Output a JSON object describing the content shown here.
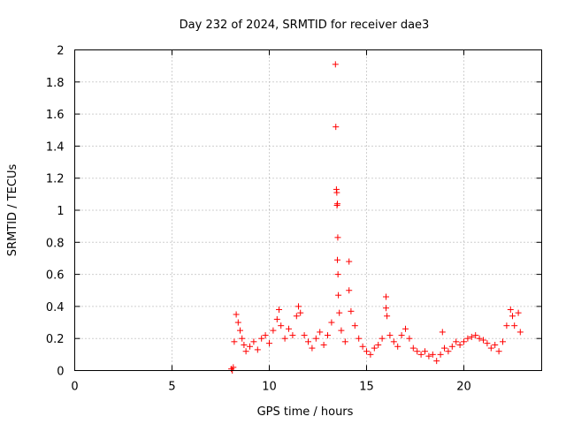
{
  "chart_data": {
    "type": "scatter",
    "title": "Day 232 of 2024, SRMTID for receiver dae3",
    "xlabel": "GPS time / hours",
    "ylabel": "SRMTID / TECUs",
    "xlim": [
      0,
      24
    ],
    "ylim": [
      0,
      2
    ],
    "xticks": [
      0,
      5,
      10,
      15,
      20
    ],
    "xtick_labels": [
      "0",
      "5",
      "10",
      "15",
      "20"
    ],
    "yticks": [
      0,
      0.2,
      0.4,
      0.6,
      0.8,
      1,
      1.2,
      1.4,
      1.6,
      1.8,
      2
    ],
    "ytick_labels": [
      "0",
      "0.2",
      "0.4",
      "0.6",
      "0.8",
      "1",
      "1.2",
      "1.4",
      "1.6",
      "1.8",
      "2"
    ],
    "grid": true,
    "marker": "+",
    "color": "#ff0000",
    "series": [
      {
        "name": "SRMTID",
        "points": [
          [
            8.05,
            0.01
          ],
          [
            8.1,
            0.0
          ],
          [
            8.15,
            0.02
          ],
          [
            8.2,
            0.18
          ],
          [
            8.3,
            0.35
          ],
          [
            8.4,
            0.3
          ],
          [
            8.5,
            0.25
          ],
          [
            8.6,
            0.2
          ],
          [
            8.7,
            0.16
          ],
          [
            8.8,
            0.12
          ],
          [
            9.0,
            0.15
          ],
          [
            9.2,
            0.18
          ],
          [
            9.4,
            0.13
          ],
          [
            9.6,
            0.2
          ],
          [
            9.8,
            0.22
          ],
          [
            10.0,
            0.17
          ],
          [
            10.2,
            0.25
          ],
          [
            10.4,
            0.32
          ],
          [
            10.5,
            0.38
          ],
          [
            10.6,
            0.28
          ],
          [
            10.8,
            0.2
          ],
          [
            11.0,
            0.26
          ],
          [
            11.2,
            0.22
          ],
          [
            11.4,
            0.34
          ],
          [
            11.5,
            0.4
          ],
          [
            11.6,
            0.36
          ],
          [
            11.8,
            0.22
          ],
          [
            12.0,
            0.18
          ],
          [
            12.2,
            0.14
          ],
          [
            12.4,
            0.2
          ],
          [
            12.6,
            0.24
          ],
          [
            12.8,
            0.16
          ],
          [
            13.0,
            0.22
          ],
          [
            13.2,
            0.3
          ],
          [
            13.4,
            1.91
          ],
          [
            13.42,
            1.52
          ],
          [
            13.45,
            1.13
          ],
          [
            13.47,
            1.11
          ],
          [
            13.48,
            1.03
          ],
          [
            13.5,
            1.04
          ],
          [
            13.52,
            0.83
          ],
          [
            13.5,
            0.69
          ],
          [
            13.53,
            0.6
          ],
          [
            13.55,
            0.47
          ],
          [
            13.6,
            0.36
          ],
          [
            13.7,
            0.25
          ],
          [
            13.9,
            0.18
          ],
          [
            14.1,
            0.68
          ],
          [
            14.1,
            0.5
          ],
          [
            14.2,
            0.37
          ],
          [
            14.4,
            0.28
          ],
          [
            14.6,
            0.2
          ],
          [
            14.8,
            0.15
          ],
          [
            15.0,
            0.12
          ],
          [
            15.2,
            0.1
          ],
          [
            15.4,
            0.14
          ],
          [
            15.6,
            0.16
          ],
          [
            15.8,
            0.2
          ],
          [
            16.0,
            0.46
          ],
          [
            16.0,
            0.39
          ],
          [
            16.05,
            0.34
          ],
          [
            16.2,
            0.22
          ],
          [
            16.4,
            0.18
          ],
          [
            16.6,
            0.15
          ],
          [
            16.8,
            0.22
          ],
          [
            17.0,
            0.26
          ],
          [
            17.2,
            0.2
          ],
          [
            17.4,
            0.14
          ],
          [
            17.6,
            0.12
          ],
          [
            17.8,
            0.1
          ],
          [
            18.0,
            0.12
          ],
          [
            18.2,
            0.09
          ],
          [
            18.4,
            0.1
          ],
          [
            18.6,
            0.06
          ],
          [
            18.8,
            0.1
          ],
          [
            18.9,
            0.24
          ],
          [
            19.0,
            0.14
          ],
          [
            19.2,
            0.12
          ],
          [
            19.4,
            0.15
          ],
          [
            19.6,
            0.18
          ],
          [
            19.8,
            0.16
          ],
          [
            20.0,
            0.18
          ],
          [
            20.2,
            0.2
          ],
          [
            20.4,
            0.21
          ],
          [
            20.6,
            0.22
          ],
          [
            20.8,
            0.2
          ],
          [
            21.0,
            0.19
          ],
          [
            21.2,
            0.17
          ],
          [
            21.4,
            0.14
          ],
          [
            21.6,
            0.16
          ],
          [
            21.8,
            0.12
          ],
          [
            22.0,
            0.18
          ],
          [
            22.2,
            0.28
          ],
          [
            22.4,
            0.38
          ],
          [
            22.5,
            0.34
          ],
          [
            22.6,
            0.28
          ],
          [
            22.8,
            0.36
          ],
          [
            22.9,
            0.24
          ]
        ]
      }
    ]
  }
}
